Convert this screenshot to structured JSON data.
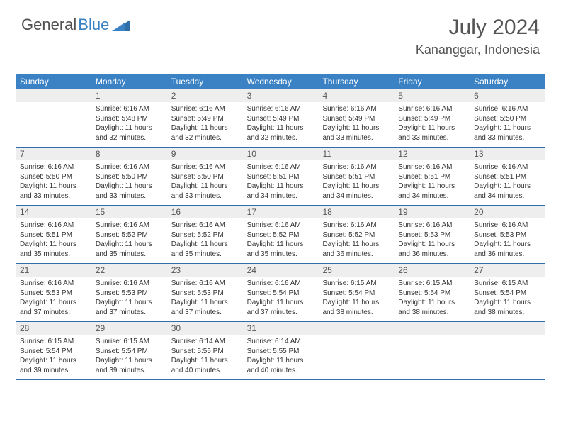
{
  "logo": {
    "word1": "General",
    "word2": "Blue"
  },
  "title": {
    "month_year": "July 2024",
    "location": "Kananggar, Indonesia"
  },
  "colors": {
    "header_bg": "#3b82c4",
    "header_text": "#ffffff",
    "daynum_bg": "#eeeeee",
    "week_border": "#2f6fa8",
    "page_bg": "#ffffff",
    "body_text": "#333333",
    "title_text": "#555555"
  },
  "typography": {
    "month_fontsize_pt": 22,
    "location_fontsize_pt": 13,
    "weekday_fontsize_pt": 9,
    "daynum_fontsize_pt": 9,
    "body_fontsize_pt": 7.5,
    "font_family": "Arial"
  },
  "layout": {
    "columns": 7,
    "rows": 5,
    "start_weekday_index": 1
  },
  "weekdays": [
    "Sunday",
    "Monday",
    "Tuesday",
    "Wednesday",
    "Thursday",
    "Friday",
    "Saturday"
  ],
  "days": [
    {
      "n": 1,
      "sunrise": "6:16 AM",
      "sunset": "5:48 PM",
      "daylight": "11 hours and 32 minutes."
    },
    {
      "n": 2,
      "sunrise": "6:16 AM",
      "sunset": "5:49 PM",
      "daylight": "11 hours and 32 minutes."
    },
    {
      "n": 3,
      "sunrise": "6:16 AM",
      "sunset": "5:49 PM",
      "daylight": "11 hours and 32 minutes."
    },
    {
      "n": 4,
      "sunrise": "6:16 AM",
      "sunset": "5:49 PM",
      "daylight": "11 hours and 33 minutes."
    },
    {
      "n": 5,
      "sunrise": "6:16 AM",
      "sunset": "5:49 PM",
      "daylight": "11 hours and 33 minutes."
    },
    {
      "n": 6,
      "sunrise": "6:16 AM",
      "sunset": "5:50 PM",
      "daylight": "11 hours and 33 minutes."
    },
    {
      "n": 7,
      "sunrise": "6:16 AM",
      "sunset": "5:50 PM",
      "daylight": "11 hours and 33 minutes."
    },
    {
      "n": 8,
      "sunrise": "6:16 AM",
      "sunset": "5:50 PM",
      "daylight": "11 hours and 33 minutes."
    },
    {
      "n": 9,
      "sunrise": "6:16 AM",
      "sunset": "5:50 PM",
      "daylight": "11 hours and 33 minutes."
    },
    {
      "n": 10,
      "sunrise": "6:16 AM",
      "sunset": "5:51 PM",
      "daylight": "11 hours and 34 minutes."
    },
    {
      "n": 11,
      "sunrise": "6:16 AM",
      "sunset": "5:51 PM",
      "daylight": "11 hours and 34 minutes."
    },
    {
      "n": 12,
      "sunrise": "6:16 AM",
      "sunset": "5:51 PM",
      "daylight": "11 hours and 34 minutes."
    },
    {
      "n": 13,
      "sunrise": "6:16 AM",
      "sunset": "5:51 PM",
      "daylight": "11 hours and 34 minutes."
    },
    {
      "n": 14,
      "sunrise": "6:16 AM",
      "sunset": "5:51 PM",
      "daylight": "11 hours and 35 minutes."
    },
    {
      "n": 15,
      "sunrise": "6:16 AM",
      "sunset": "5:52 PM",
      "daylight": "11 hours and 35 minutes."
    },
    {
      "n": 16,
      "sunrise": "6:16 AM",
      "sunset": "5:52 PM",
      "daylight": "11 hours and 35 minutes."
    },
    {
      "n": 17,
      "sunrise": "6:16 AM",
      "sunset": "5:52 PM",
      "daylight": "11 hours and 35 minutes."
    },
    {
      "n": 18,
      "sunrise": "6:16 AM",
      "sunset": "5:52 PM",
      "daylight": "11 hours and 36 minutes."
    },
    {
      "n": 19,
      "sunrise": "6:16 AM",
      "sunset": "5:53 PM",
      "daylight": "11 hours and 36 minutes."
    },
    {
      "n": 20,
      "sunrise": "6:16 AM",
      "sunset": "5:53 PM",
      "daylight": "11 hours and 36 minutes."
    },
    {
      "n": 21,
      "sunrise": "6:16 AM",
      "sunset": "5:53 PM",
      "daylight": "11 hours and 37 minutes."
    },
    {
      "n": 22,
      "sunrise": "6:16 AM",
      "sunset": "5:53 PM",
      "daylight": "11 hours and 37 minutes."
    },
    {
      "n": 23,
      "sunrise": "6:16 AM",
      "sunset": "5:53 PM",
      "daylight": "11 hours and 37 minutes."
    },
    {
      "n": 24,
      "sunrise": "6:16 AM",
      "sunset": "5:54 PM",
      "daylight": "11 hours and 37 minutes."
    },
    {
      "n": 25,
      "sunrise": "6:15 AM",
      "sunset": "5:54 PM",
      "daylight": "11 hours and 38 minutes."
    },
    {
      "n": 26,
      "sunrise": "6:15 AM",
      "sunset": "5:54 PM",
      "daylight": "11 hours and 38 minutes."
    },
    {
      "n": 27,
      "sunrise": "6:15 AM",
      "sunset": "5:54 PM",
      "daylight": "11 hours and 38 minutes."
    },
    {
      "n": 28,
      "sunrise": "6:15 AM",
      "sunset": "5:54 PM",
      "daylight": "11 hours and 39 minutes."
    },
    {
      "n": 29,
      "sunrise": "6:15 AM",
      "sunset": "5:54 PM",
      "daylight": "11 hours and 39 minutes."
    },
    {
      "n": 30,
      "sunrise": "6:14 AM",
      "sunset": "5:55 PM",
      "daylight": "11 hours and 40 minutes."
    },
    {
      "n": 31,
      "sunrise": "6:14 AM",
      "sunset": "5:55 PM",
      "daylight": "11 hours and 40 minutes."
    }
  ],
  "labels": {
    "sunrise": "Sunrise:",
    "sunset": "Sunset:",
    "daylight": "Daylight:"
  }
}
